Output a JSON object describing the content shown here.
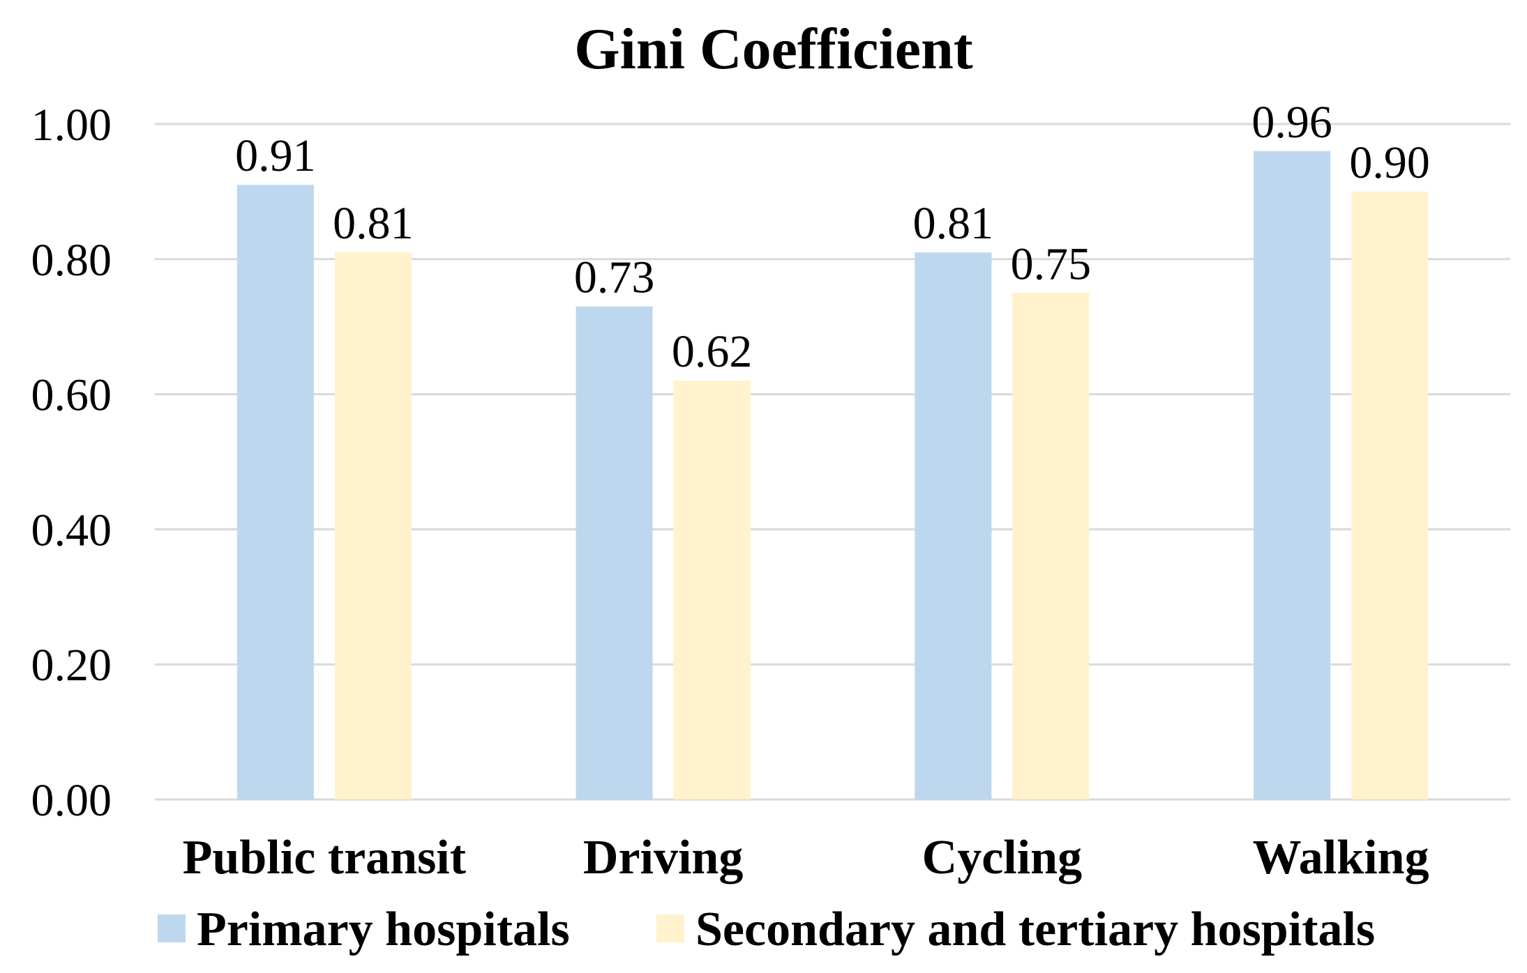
{
  "chart_data": {
    "type": "bar",
    "title": "Gini Coefficient",
    "categories": [
      "Public transit",
      "Driving",
      "Cycling",
      "Walking"
    ],
    "series": [
      {
        "name": "Primary hospitals",
        "color": "#bdd7ee",
        "values": [
          0.91,
          0.73,
          0.81,
          0.96
        ],
        "labels": [
          "0.91",
          "0.73",
          "0.81",
          "0.96"
        ]
      },
      {
        "name": "Secondary and tertiary hospitals",
        "color": "#fff2cc",
        "values": [
          0.81,
          0.62,
          0.75,
          0.9
        ],
        "labels": [
          "0.81",
          "0.62",
          "0.75",
          "0.90"
        ]
      }
    ],
    "yticks": [
      0,
      0.2,
      0.4,
      0.6,
      0.8,
      1.0
    ],
    "ytick_labels": [
      "0.00",
      "0.20",
      "0.40",
      "0.60",
      "0.80",
      "1.00"
    ],
    "ylim": [
      0,
      1.0
    ],
    "xlabel": "",
    "ylabel": "",
    "grid": true,
    "legend_position": "bottom"
  }
}
